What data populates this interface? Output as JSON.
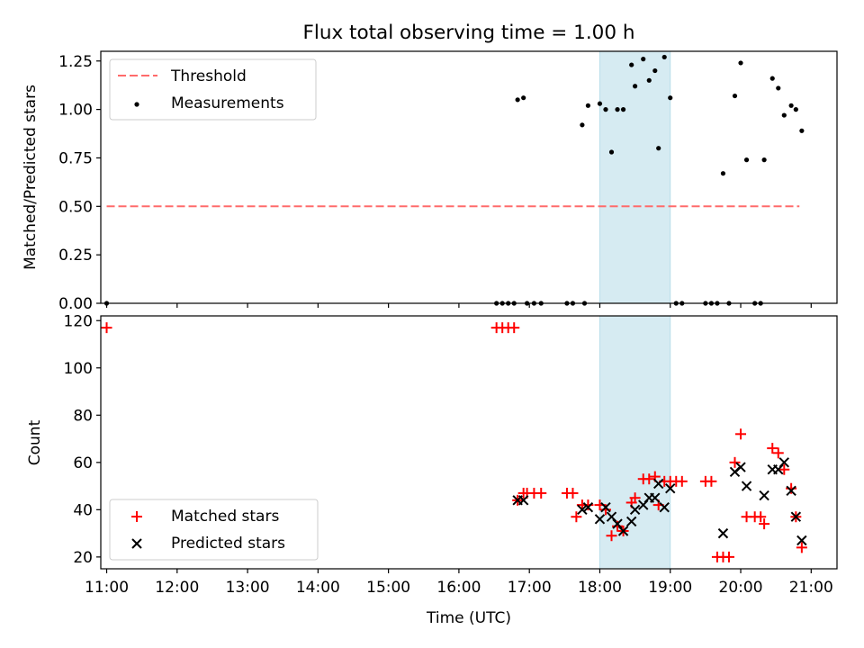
{
  "chart_data": [
    {
      "type": "scatter",
      "title": "Flux total observing time = 1.00 h",
      "ylabel": "Matched/Predicted stars",
      "xlabel": "",
      "xlim": [
        "10:55",
        "21:22"
      ],
      "ylim": [
        0,
        1.3
      ],
      "x_ticks": [
        "11:00",
        "12:00",
        "13:00",
        "14:00",
        "15:00",
        "16:00",
        "17:00",
        "18:00",
        "19:00",
        "20:00",
        "21:00"
      ],
      "y_ticks": [
        "0.00",
        "0.25",
        "0.50",
        "0.75",
        "1.00",
        "1.25"
      ],
      "grid": false,
      "legend_position": "upper-left",
      "highlight_band": {
        "from": "18:00",
        "to": "19:00",
        "color": "#add8e6"
      },
      "threshold": {
        "name": "Threshold",
        "value": 0.5,
        "from": "11:00",
        "to": "20:50",
        "color": "#ff6b6b",
        "style": "dashed"
      },
      "series": [
        {
          "name": "Measurements",
          "color": "#000000",
          "marker": "dot",
          "points": [
            [
              "11:00",
              0.0
            ],
            [
              "16:32",
              0.0
            ],
            [
              "16:37",
              0.0
            ],
            [
              "16:42",
              0.0
            ],
            [
              "16:47",
              0.0
            ],
            [
              "16:50",
              1.05
            ],
            [
              "16:55",
              1.06
            ],
            [
              "16:58",
              0.0
            ],
            [
              "17:04",
              0.0
            ],
            [
              "17:10",
              0.0
            ],
            [
              "17:32",
              0.0
            ],
            [
              "17:37",
              0.0
            ],
            [
              "17:47",
              0.0
            ],
            [
              "17:45",
              0.92
            ],
            [
              "17:50",
              1.02
            ],
            [
              "18:00",
              1.03
            ],
            [
              "18:05",
              1.0
            ],
            [
              "18:10",
              0.78
            ],
            [
              "18:15",
              1.0
            ],
            [
              "18:20",
              1.0
            ],
            [
              "18:27",
              1.23
            ],
            [
              "18:30",
              1.12
            ],
            [
              "18:37",
              1.26
            ],
            [
              "18:42",
              1.15
            ],
            [
              "18:47",
              1.2
            ],
            [
              "18:50",
              0.8
            ],
            [
              "18:55",
              1.27
            ],
            [
              "19:00",
              1.06
            ],
            [
              "19:05",
              0.0
            ],
            [
              "19:10",
              0.0
            ],
            [
              "19:30",
              0.0
            ],
            [
              "19:35",
              0.0
            ],
            [
              "19:40",
              0.0
            ],
            [
              "19:45",
              0.67
            ],
            [
              "19:50",
              0.0
            ],
            [
              "19:55",
              1.07
            ],
            [
              "20:00",
              1.24
            ],
            [
              "20:05",
              0.74
            ],
            [
              "20:12",
              0.0
            ],
            [
              "20:17",
              0.0
            ],
            [
              "20:20",
              0.74
            ],
            [
              "20:27",
              1.16
            ],
            [
              "20:32",
              1.11
            ],
            [
              "20:37",
              0.97
            ],
            [
              "20:43",
              1.02
            ],
            [
              "20:47",
              1.0
            ],
            [
              "20:52",
              0.89
            ]
          ]
        }
      ]
    },
    {
      "type": "scatter",
      "title": "",
      "ylabel": "Count",
      "xlabel": "Time (UTC)",
      "xlim": [
        "10:55",
        "21:22"
      ],
      "ylim": [
        15,
        122
      ],
      "x_ticks": [
        "11:00",
        "12:00",
        "13:00",
        "14:00",
        "15:00",
        "16:00",
        "17:00",
        "18:00",
        "19:00",
        "20:00",
        "21:00"
      ],
      "y_ticks": [
        "20",
        "40",
        "60",
        "80",
        "100",
        "120"
      ],
      "grid": false,
      "legend_position": "lower-left",
      "highlight_band": {
        "from": "18:00",
        "to": "19:00",
        "color": "#add8e6"
      },
      "series": [
        {
          "name": "Matched stars",
          "color": "#ff0000",
          "marker": "plus",
          "points": [
            [
              "11:00",
              117
            ],
            [
              "16:32",
              117
            ],
            [
              "16:37",
              117
            ],
            [
              "16:42",
              117
            ],
            [
              "16:47",
              117
            ],
            [
              "16:50",
              44
            ],
            [
              "16:55",
              47
            ],
            [
              "16:58",
              47
            ],
            [
              "17:04",
              47
            ],
            [
              "17:10",
              47
            ],
            [
              "17:32",
              47
            ],
            [
              "17:37",
              47
            ],
            [
              "17:40",
              37
            ],
            [
              "17:45",
              42
            ],
            [
              "17:50",
              42
            ],
            [
              "18:00",
              42
            ],
            [
              "18:05",
              40
            ],
            [
              "18:10",
              29
            ],
            [
              "18:15",
              33
            ],
            [
              "18:20",
              31
            ],
            [
              "18:27",
              43
            ],
            [
              "18:30",
              45
            ],
            [
              "18:37",
              53
            ],
            [
              "18:42",
              53
            ],
            [
              "18:47",
              54
            ],
            [
              "18:50",
              42
            ],
            [
              "18:55",
              52
            ],
            [
              "19:00",
              52
            ],
            [
              "19:05",
              52
            ],
            [
              "19:10",
              52
            ],
            [
              "19:30",
              52
            ],
            [
              "19:35",
              52
            ],
            [
              "19:40",
              20
            ],
            [
              "19:45",
              20
            ],
            [
              "19:50",
              20
            ],
            [
              "19:55",
              60
            ],
            [
              "20:00",
              72
            ],
            [
              "20:05",
              37
            ],
            [
              "20:12",
              37
            ],
            [
              "20:17",
              37
            ],
            [
              "20:20",
              34
            ],
            [
              "20:27",
              66
            ],
            [
              "20:32",
              64
            ],
            [
              "20:37",
              57
            ],
            [
              "20:43",
              49
            ],
            [
              "20:47",
              37
            ],
            [
              "20:52",
              24
            ]
          ]
        },
        {
          "name": "Predicted stars",
          "color": "#000000",
          "marker": "x",
          "points": [
            [
              "16:50",
              44
            ],
            [
              "16:55",
              44
            ],
            [
              "17:45",
              40
            ],
            [
              "17:50",
              41
            ],
            [
              "18:00",
              36
            ],
            [
              "18:05",
              41
            ],
            [
              "18:10",
              37
            ],
            [
              "18:15",
              34
            ],
            [
              "18:20",
              31
            ],
            [
              "18:27",
              35
            ],
            [
              "18:30",
              40
            ],
            [
              "18:37",
              42
            ],
            [
              "18:42",
              45
            ],
            [
              "18:47",
              45
            ],
            [
              "18:50",
              51
            ],
            [
              "18:55",
              41
            ],
            [
              "19:00",
              49
            ],
            [
              "19:45",
              30
            ],
            [
              "19:55",
              56
            ],
            [
              "20:00",
              58
            ],
            [
              "20:05",
              50
            ],
            [
              "20:20",
              46
            ],
            [
              "20:27",
              57
            ],
            [
              "20:32",
              57
            ],
            [
              "20:37",
              60
            ],
            [
              "20:43",
              48
            ],
            [
              "20:47",
              37
            ],
            [
              "20:52",
              27
            ]
          ]
        }
      ]
    }
  ]
}
